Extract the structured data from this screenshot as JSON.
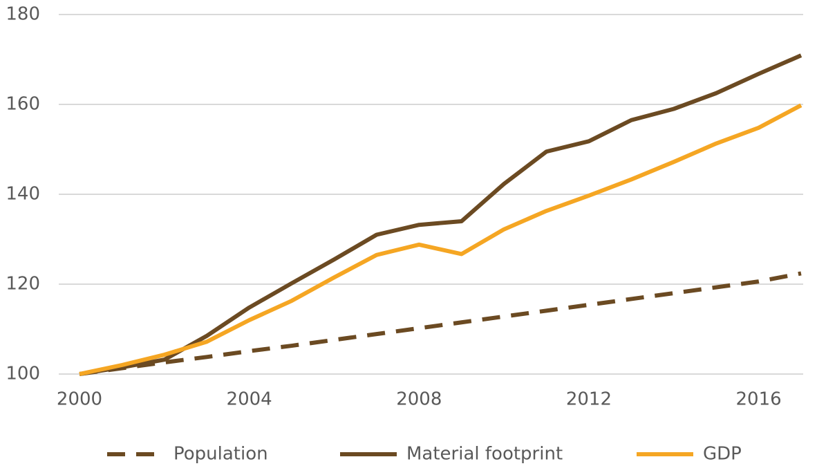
{
  "chart_data": {
    "type": "line",
    "x": [
      2000,
      2001,
      2002,
      2003,
      2004,
      2005,
      2006,
      2007,
      2008,
      2009,
      2010,
      2011,
      2012,
      2013,
      2014,
      2015,
      2016,
      2017
    ],
    "series": [
      {
        "name": "Population",
        "color": "#6b4a22",
        "dashed": true,
        "values": [
          100,
          101.3,
          102.6,
          103.8,
          105.1,
          106.3,
          107.6,
          108.9,
          110.2,
          111.5,
          112.8,
          114.1,
          115.4,
          116.7,
          118.0,
          119.3,
          120.6,
          122.4
        ]
      },
      {
        "name": "Material footprint",
        "color": "#6b4a22",
        "dashed": false,
        "values": [
          100,
          101.5,
          103.2,
          108.5,
          114.8,
          120.2,
          125.5,
          131,
          133.2,
          134,
          142.3,
          149.5,
          151.8,
          156.5,
          159,
          162.5,
          166.8,
          170.9
        ]
      },
      {
        "name": "GDP",
        "color": "#f5a623",
        "dashed": false,
        "values": [
          100,
          102,
          104.3,
          107.2,
          112,
          116.3,
          121.5,
          126.5,
          128.8,
          126.7,
          132.2,
          136.3,
          139.7,
          143.3,
          147.2,
          151.3,
          154.8,
          159.8
        ]
      }
    ],
    "xlim": [
      2000,
      2017
    ],
    "xticks": [
      2000,
      2004,
      2008,
      2012,
      2016
    ],
    "ylim": [
      100,
      180
    ],
    "yticks": [
      100,
      120,
      140,
      160,
      180
    ],
    "grid": true,
    "legend": "bottom"
  }
}
